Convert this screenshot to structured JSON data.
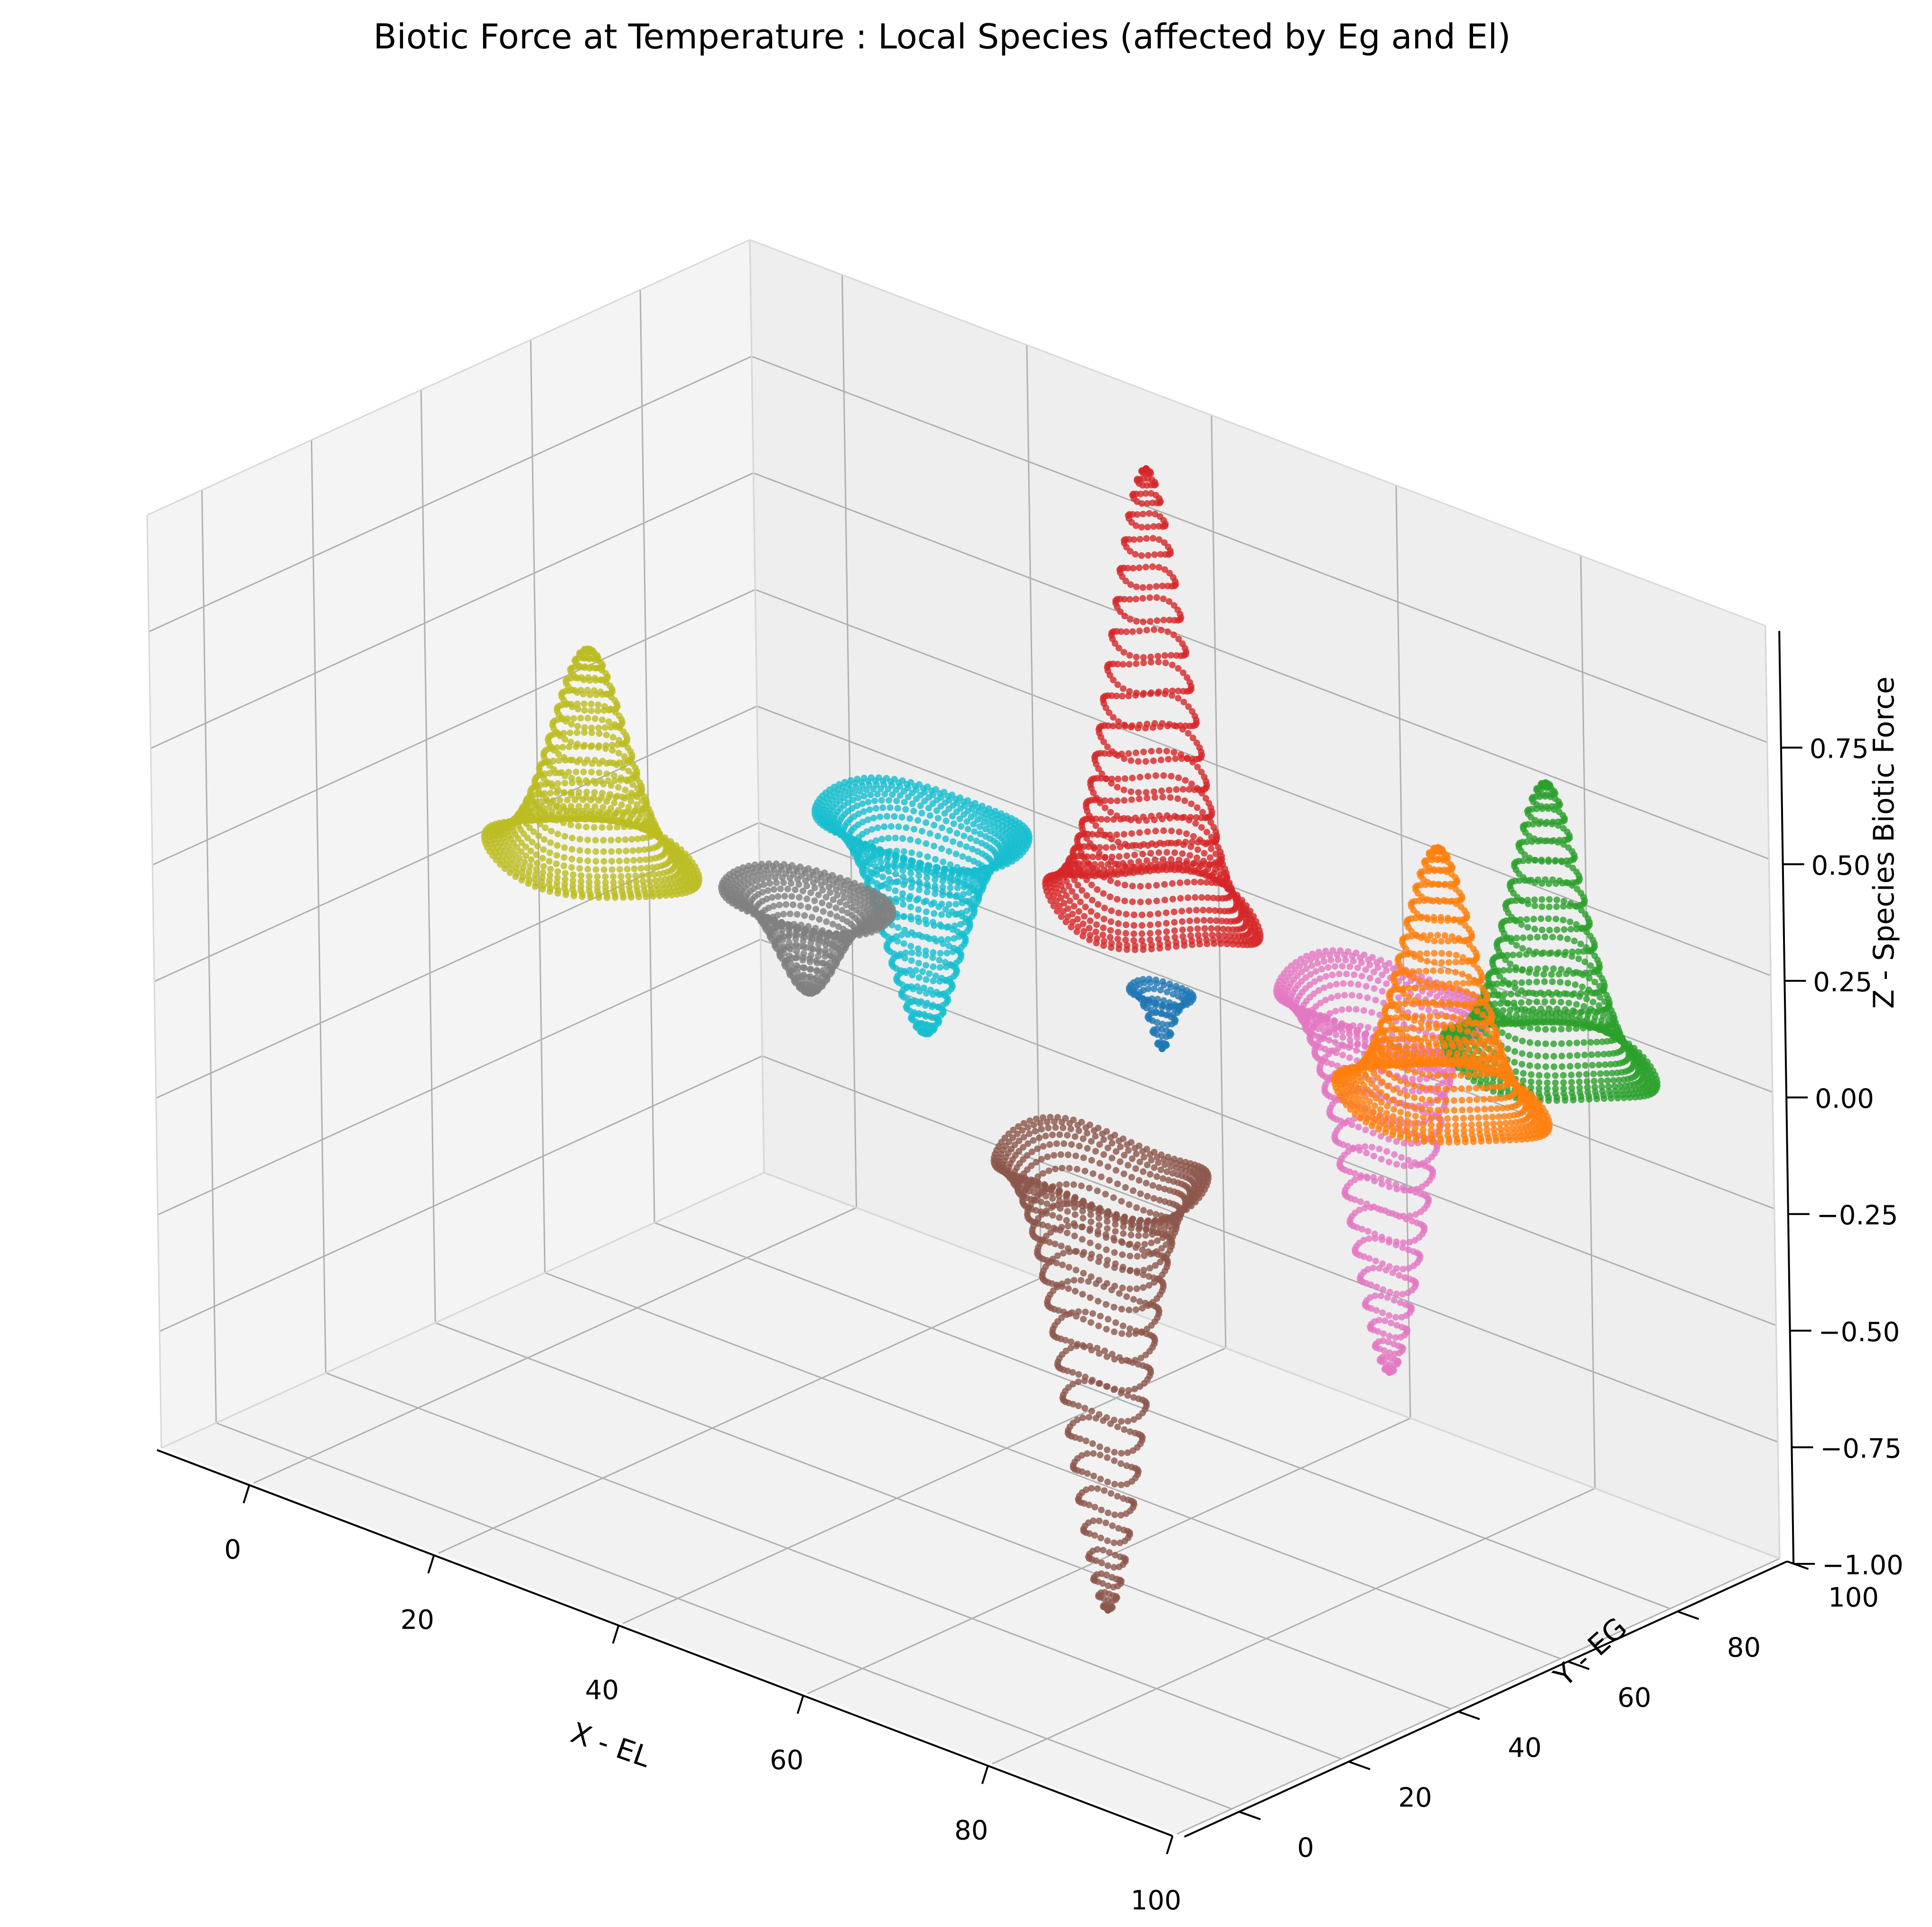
{
  "chart_data": {
    "type": "scatter",
    "projection": "3d",
    "title": "Biotic Force at Temperature : Local Species (affected by Eg and El)",
    "xlabel": "X - EL",
    "ylabel": "Y - EG",
    "zlabel": "Z - Species Biotic Force",
    "xlim": [
      -10,
      100
    ],
    "ylim": [
      -10,
      100
    ],
    "zlim": [
      -1.0,
      1.0
    ],
    "xticks": [
      0,
      20,
      40,
      60,
      80,
      100
    ],
    "yticks": [
      0,
      20,
      40,
      60,
      80,
      100
    ],
    "zticks": [
      -1.0,
      -0.75,
      -0.5,
      -0.25,
      0.0,
      0.25,
      0.5,
      0.75
    ],
    "x_tick_labels": [
      "0",
      "20",
      "40",
      "60",
      "80",
      "100"
    ],
    "y_tick_labels": [
      "0",
      "20",
      "40",
      "60",
      "80",
      "100"
    ],
    "z_tick_labels": [
      "−1.00",
      "−0.75",
      "−0.50",
      "−0.25",
      "0.00",
      "0.25",
      "0.50",
      "0.75"
    ],
    "grid": true,
    "legend": "none",
    "series": [
      {
        "color": "#1f77b4",
        "center": [
          51,
          71
        ],
        "radius": 3,
        "amplitude": -0.12
      },
      {
        "color": "#ff7f0e",
        "center": [
          82,
          70
        ],
        "radius": 10,
        "amplitude": 0.55
      },
      {
        "color": "#2ca02c",
        "center": [
          83,
          88
        ],
        "radius": 10,
        "amplitude": 0.6
      },
      {
        "color": "#d62728",
        "center": [
          40,
          88
        ],
        "radius": 10,
        "amplitude": 0.95
      },
      {
        "color": "#8c564b",
        "center": [
          70,
          28
        ],
        "radius": 10,
        "amplitude": -0.95
      },
      {
        "color": "#e377c2",
        "center": [
          65,
          88
        ],
        "radius": 10,
        "amplitude": -0.8
      },
      {
        "color": "#7f7f7f",
        "center": [
          18,
          62
        ],
        "radius": 8,
        "amplitude": -0.2
      },
      {
        "color": "#bcbd22",
        "center": [
          0,
          53
        ],
        "radius": 10,
        "amplitude": 0.45
      },
      {
        "color": "#17becf",
        "center": [
          15,
          88
        ],
        "radius": 10,
        "amplitude": -0.45
      }
    ]
  }
}
